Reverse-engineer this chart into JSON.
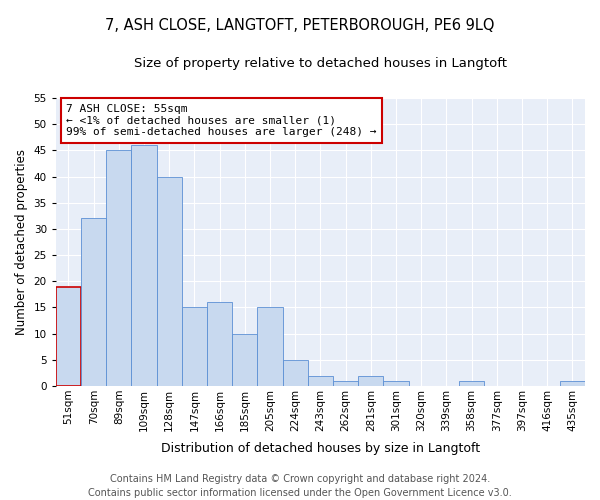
{
  "title": "7, ASH CLOSE, LANGTOFT, PETERBOROUGH, PE6 9LQ",
  "subtitle": "Size of property relative to detached houses in Langtoft",
  "xlabel": "Distribution of detached houses by size in Langtoft",
  "ylabel": "Number of detached properties",
  "categories": [
    "51sqm",
    "70sqm",
    "89sqm",
    "109sqm",
    "128sqm",
    "147sqm",
    "166sqm",
    "185sqm",
    "205sqm",
    "224sqm",
    "243sqm",
    "262sqm",
    "281sqm",
    "301sqm",
    "320sqm",
    "339sqm",
    "358sqm",
    "377sqm",
    "397sqm",
    "416sqm",
    "435sqm"
  ],
  "values": [
    19,
    32,
    45,
    46,
    40,
    15,
    16,
    10,
    15,
    5,
    2,
    1,
    2,
    1,
    0,
    0,
    1,
    0,
    0,
    0,
    1
  ],
  "bar_color": "#c8d9ef",
  "bar_edge_color": "#5b8fd4",
  "highlight_bar_edge_color": "#cc0000",
  "annotation_line1": "7 ASH CLOSE: 55sqm",
  "annotation_line2": "← <1% of detached houses are smaller (1)",
  "annotation_line3": "99% of semi-detached houses are larger (248) →",
  "ylim": [
    0,
    55
  ],
  "yticks": [
    0,
    5,
    10,
    15,
    20,
    25,
    30,
    35,
    40,
    45,
    50,
    55
  ],
  "plot_bg_color": "#e8eef8",
  "footer_line1": "Contains HM Land Registry data © Crown copyright and database right 2024.",
  "footer_line2": "Contains public sector information licensed under the Open Government Licence v3.0.",
  "title_fontsize": 10.5,
  "subtitle_fontsize": 9.5,
  "xlabel_fontsize": 9,
  "ylabel_fontsize": 8.5,
  "tick_fontsize": 7.5,
  "annotation_fontsize": 8,
  "footer_fontsize": 7
}
